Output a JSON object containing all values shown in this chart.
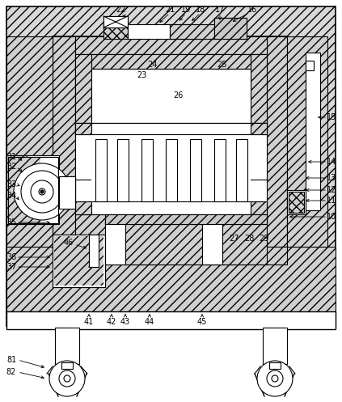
{
  "bg": "#ffffff",
  "lc": "#000000",
  "hatch_fc": "#d8d8d8",
  "figsize": [
    4.23,
    4.97
  ],
  "dpi": 100
}
